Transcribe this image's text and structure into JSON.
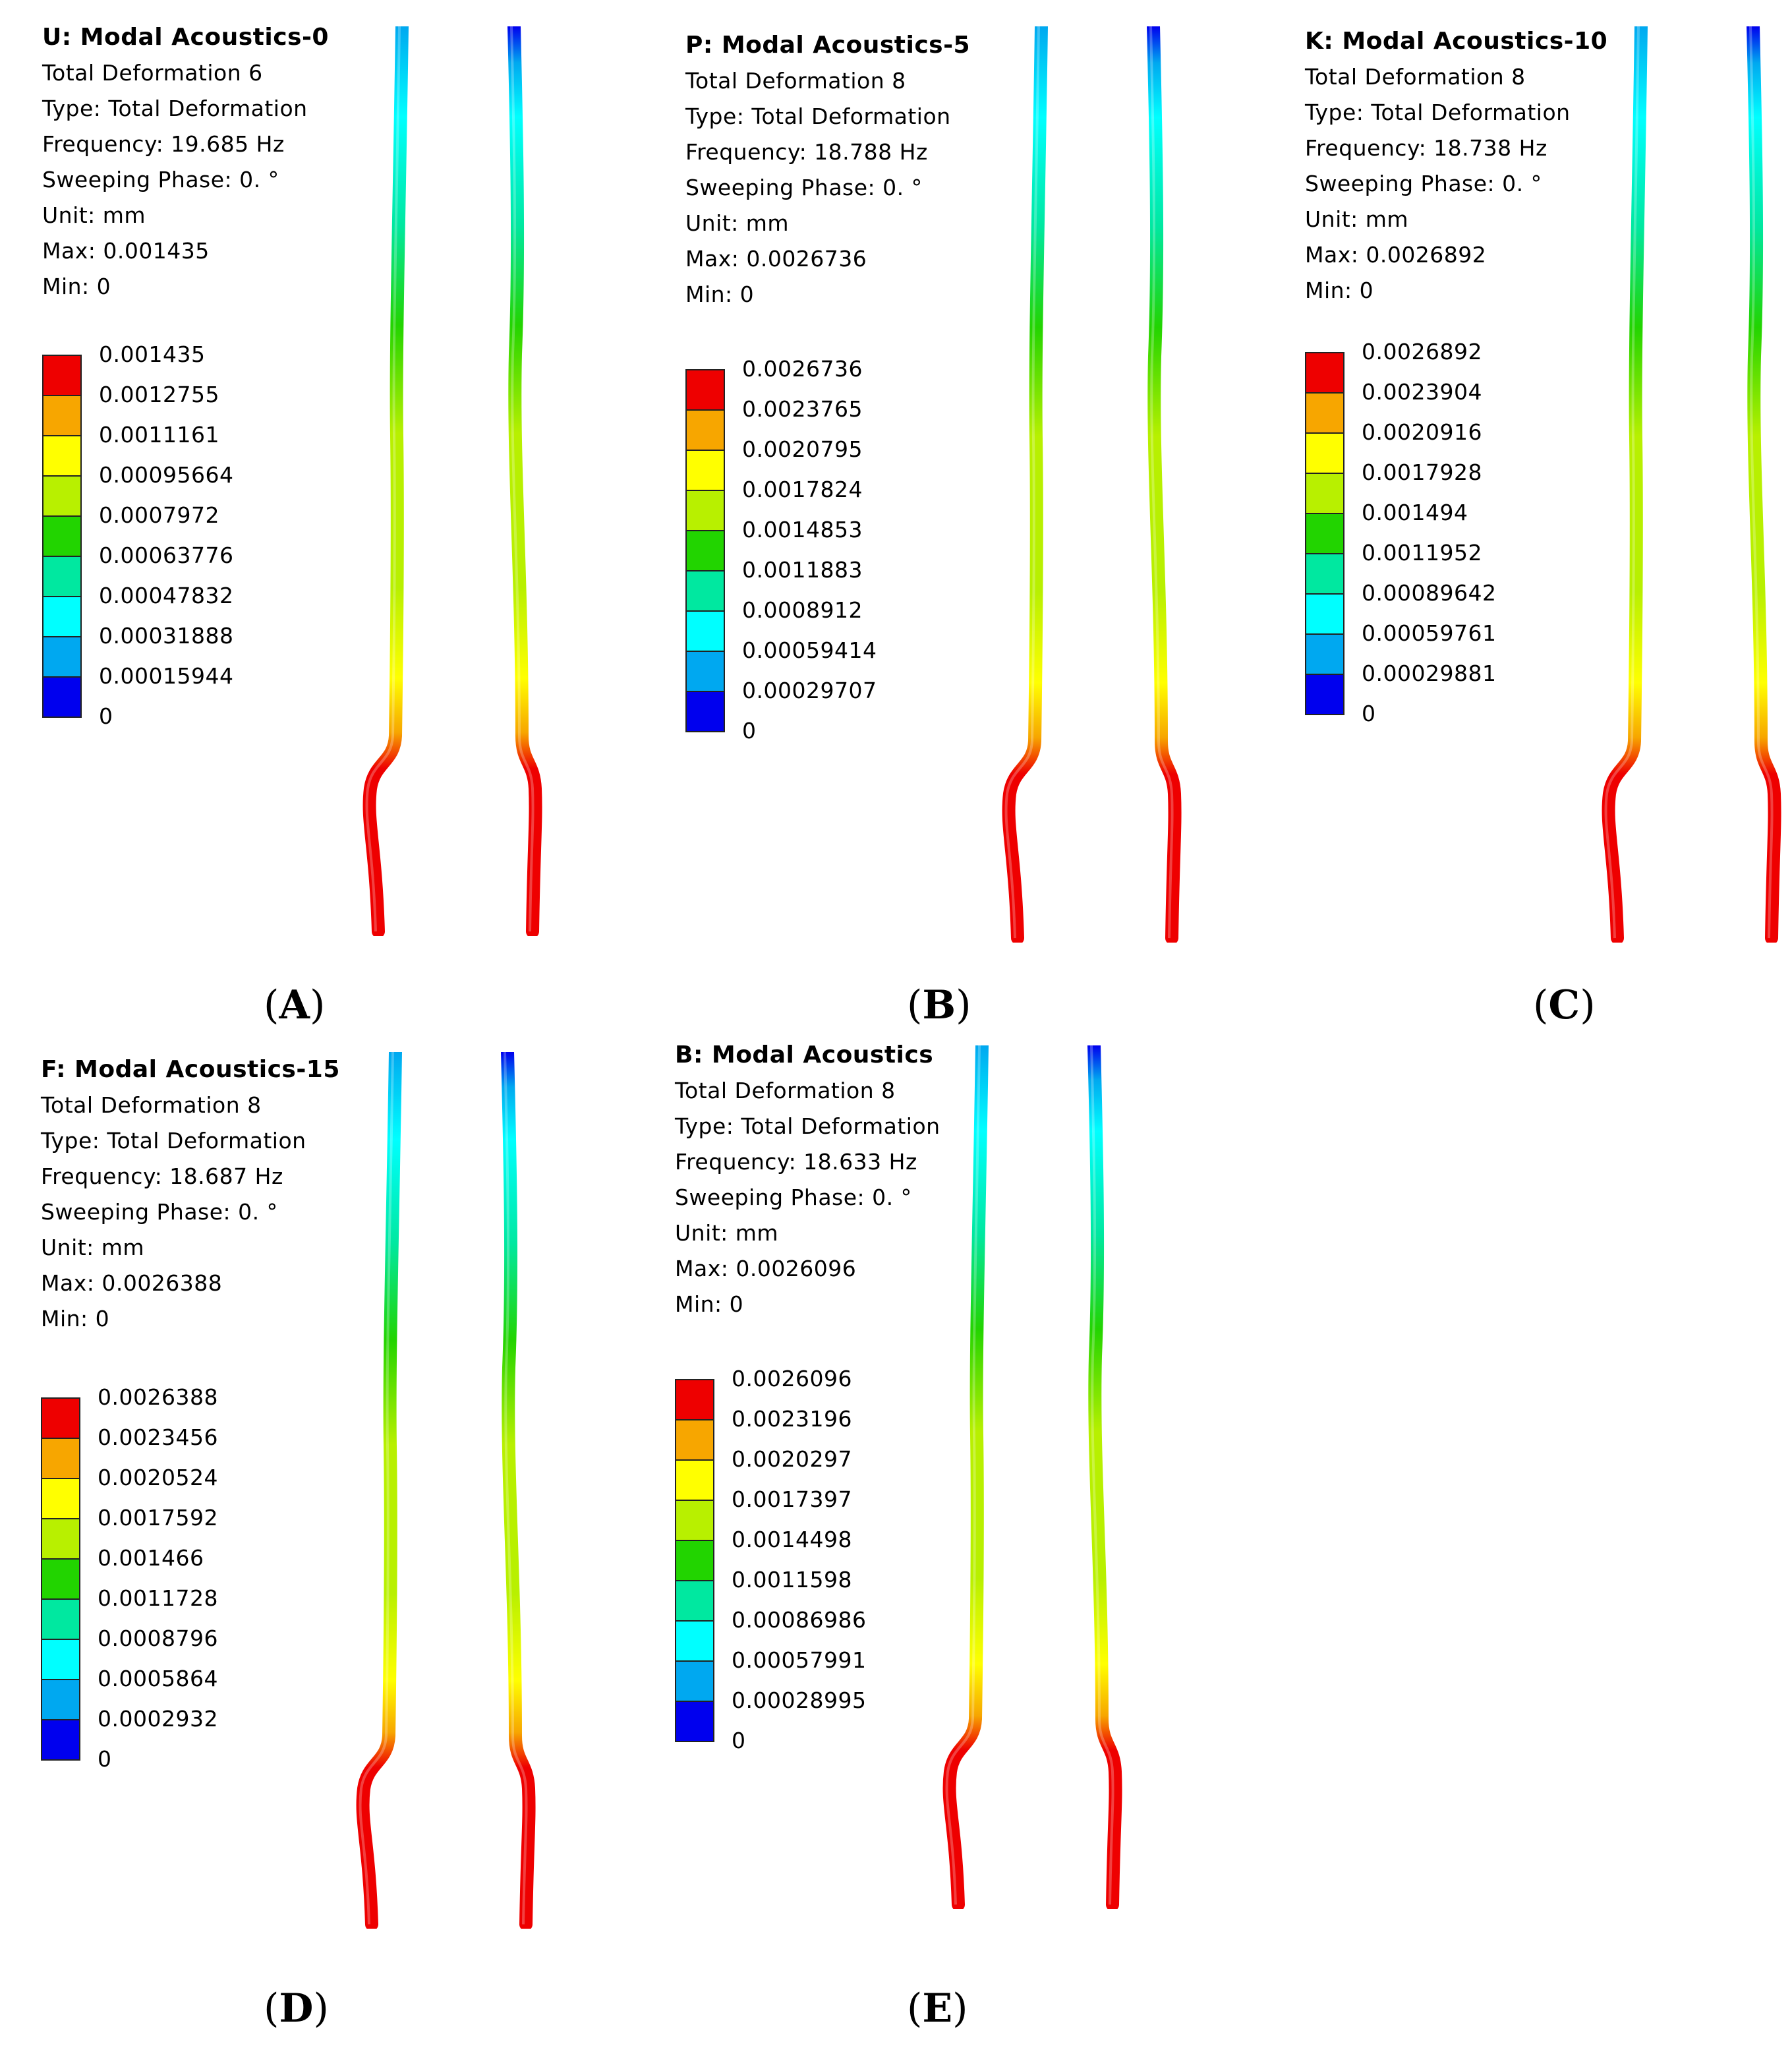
{
  "panels": [
    {
      "id": "A",
      "caption_letter": "A",
      "title": "U: Modal Acoustics-0",
      "lines": [
        "Total Deformation 6",
        "Type: Total Deformation",
        "Frequency: 19.685 Hz",
        "Sweeping Phase: 0. °",
        "Unit: mm",
        "Max: 0.001435",
        "Min: 0"
      ],
      "legend": [
        "0.001435",
        "0.0012755",
        "0.0011161",
        "0.00095664",
        "0.0007972",
        "0.00063776",
        "0.00047832",
        "0.00031888",
        "0.00015944",
        "0"
      ]
    },
    {
      "id": "B",
      "caption_letter": "B",
      "title": "P: Modal Acoustics-5",
      "lines": [
        "Total Deformation 8",
        "Type: Total Deformation",
        "Frequency: 18.788 Hz",
        "Sweeping Phase: 0. °",
        "Unit: mm",
        "Max: 0.0026736",
        "Min: 0"
      ],
      "legend": [
        "0.0026736",
        "0.0023765",
        "0.0020795",
        "0.0017824",
        "0.0014853",
        "0.0011883",
        "0.0008912",
        "0.00059414",
        "0.00029707",
        "0"
      ]
    },
    {
      "id": "C",
      "caption_letter": "C",
      "title": "K: Modal Acoustics-10",
      "lines": [
        "Total Deformation 8",
        "Type: Total Deformation",
        "Frequency: 18.738 Hz",
        "Sweeping Phase: 0. °",
        "Unit: mm",
        "Max: 0.0026892",
        "Min: 0"
      ],
      "legend": [
        "0.0026892",
        "0.0023904",
        "0.0020916",
        "0.0017928",
        "0.001494",
        "0.0011952",
        "0.00089642",
        "0.00059761",
        "0.00029881",
        "0"
      ]
    },
    {
      "id": "D",
      "caption_letter": "D",
      "title": "F: Modal Acoustics-15",
      "lines": [
        "Total Deformation 8",
        "Type: Total Deformation",
        "Frequency: 18.687 Hz",
        "Sweeping Phase: 0. °",
        "Unit: mm",
        "Max: 0.0026388",
        "Min: 0"
      ],
      "legend": [
        "0.0026388",
        "0.0023456",
        "0.0020524",
        "0.0017592",
        "0.001466",
        "0.0011728",
        "0.0008796",
        "0.0005864",
        "0.0002932",
        "0"
      ]
    },
    {
      "id": "E",
      "caption_letter": "E",
      "title": "B: Modal Acoustics",
      "lines": [
        "Total Deformation 8",
        "Type: Total Deformation",
        "Frequency: 18.633 Hz",
        "Sweeping Phase: 0. °",
        "Unit: mm",
        "Max: 0.0026096",
        "Min: 0"
      ],
      "legend": [
        "0.0026096",
        "0.0023196",
        "0.0020297",
        "0.0017397",
        "0.0014498",
        "0.0011598",
        "0.00086986",
        "0.00057991",
        "0.00028995",
        "0"
      ]
    }
  ],
  "colors": {
    "legend": [
      "#ee0000",
      "#f7a600",
      "#ffff00",
      "#b8f000",
      "#22d400",
      "#00e8a0",
      "#00ffff",
      "#00a8f0",
      "#0000ee"
    ],
    "text": "#000000"
  }
}
